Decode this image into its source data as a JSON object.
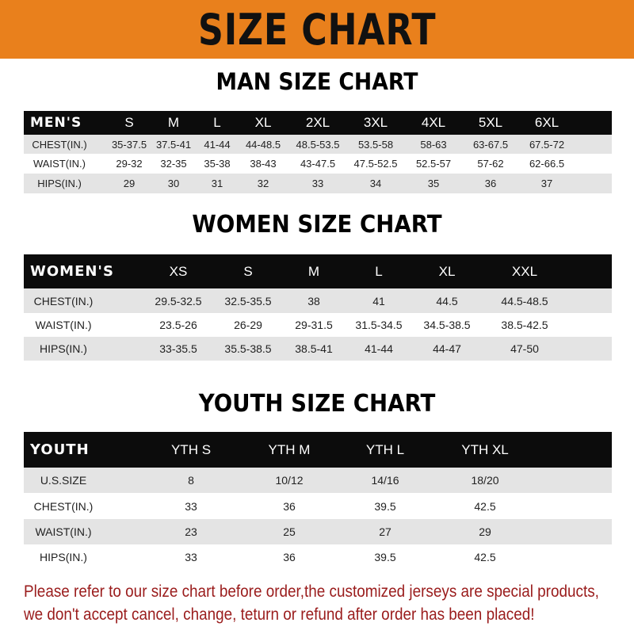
{
  "banner": {
    "title": "SIZE CHART",
    "color": "#e9801c"
  },
  "tables": [
    {
      "title": "MAN SIZE CHART",
      "corner": "MEN'S",
      "columns": [
        "S",
        "M",
        "L",
        "XL",
        "2XL",
        "3XL",
        "4XL",
        "5XL",
        "6XL"
      ],
      "rows": [
        {
          "label": "CHEST(IN.)",
          "values": [
            "35-37.5",
            "37.5-41",
            "41-44",
            "44-48.5",
            "48.5-53.5",
            "53.5-58",
            "58-63",
            "63-67.5",
            "67.5-72"
          ]
        },
        {
          "label": "WAIST(IN.)",
          "values": [
            "29-32",
            "32-35",
            "35-38",
            "38-43",
            "43-47.5",
            "47.5-52.5",
            "52.5-57",
            "57-62",
            "62-66.5"
          ]
        },
        {
          "label": "HIPS(IN.)",
          "values": [
            "29",
            "30",
            "31",
            "32",
            "33",
            "34",
            "35",
            "36",
            "37"
          ]
        }
      ]
    },
    {
      "title": "WOMEN SIZE CHART",
      "corner": "WOMEN'S",
      "columns": [
        "XS",
        "S",
        "M",
        "L",
        "XL",
        "XXL"
      ],
      "rows": [
        {
          "label": "CHEST(IN.)",
          "values": [
            "29.5-32.5",
            "32.5-35.5",
            "38",
            "41",
            "44.5",
            "44.5-48.5"
          ]
        },
        {
          "label": "WAIST(IN.)",
          "values": [
            "23.5-26",
            "26-29",
            "29-31.5",
            "31.5-34.5",
            "34.5-38.5",
            "38.5-42.5"
          ]
        },
        {
          "label": "HIPS(IN.)",
          "values": [
            "33-35.5",
            "35.5-38.5",
            "38.5-41",
            "41-44",
            "44-47",
            "47-50"
          ]
        }
      ]
    },
    {
      "title": "YOUTH SIZE CHART",
      "corner": "YOUTH",
      "columns": [
        "YTH S",
        "YTH M",
        "YTH L",
        "YTH XL"
      ],
      "rows": [
        {
          "label": "U.S.SIZE",
          "values": [
            "8",
            "10/12",
            "14/16",
            "18/20"
          ]
        },
        {
          "label": "CHEST(IN.)",
          "values": [
            "33",
            "36",
            "39.5",
            "42.5"
          ]
        },
        {
          "label": "WAIST(IN.)",
          "values": [
            "23",
            "25",
            "27",
            "29"
          ]
        },
        {
          "label": "HIPS(IN.)",
          "values": [
            "33",
            "36",
            "39.5",
            "42.5"
          ]
        }
      ]
    }
  ],
  "note": {
    "line1": "Please refer to our size chart before order,the customized jerseys are special products,",
    "line2": "we don't accept cancel, change, teturn or refund after order has been placed!",
    "color": "#9a1c1c"
  }
}
